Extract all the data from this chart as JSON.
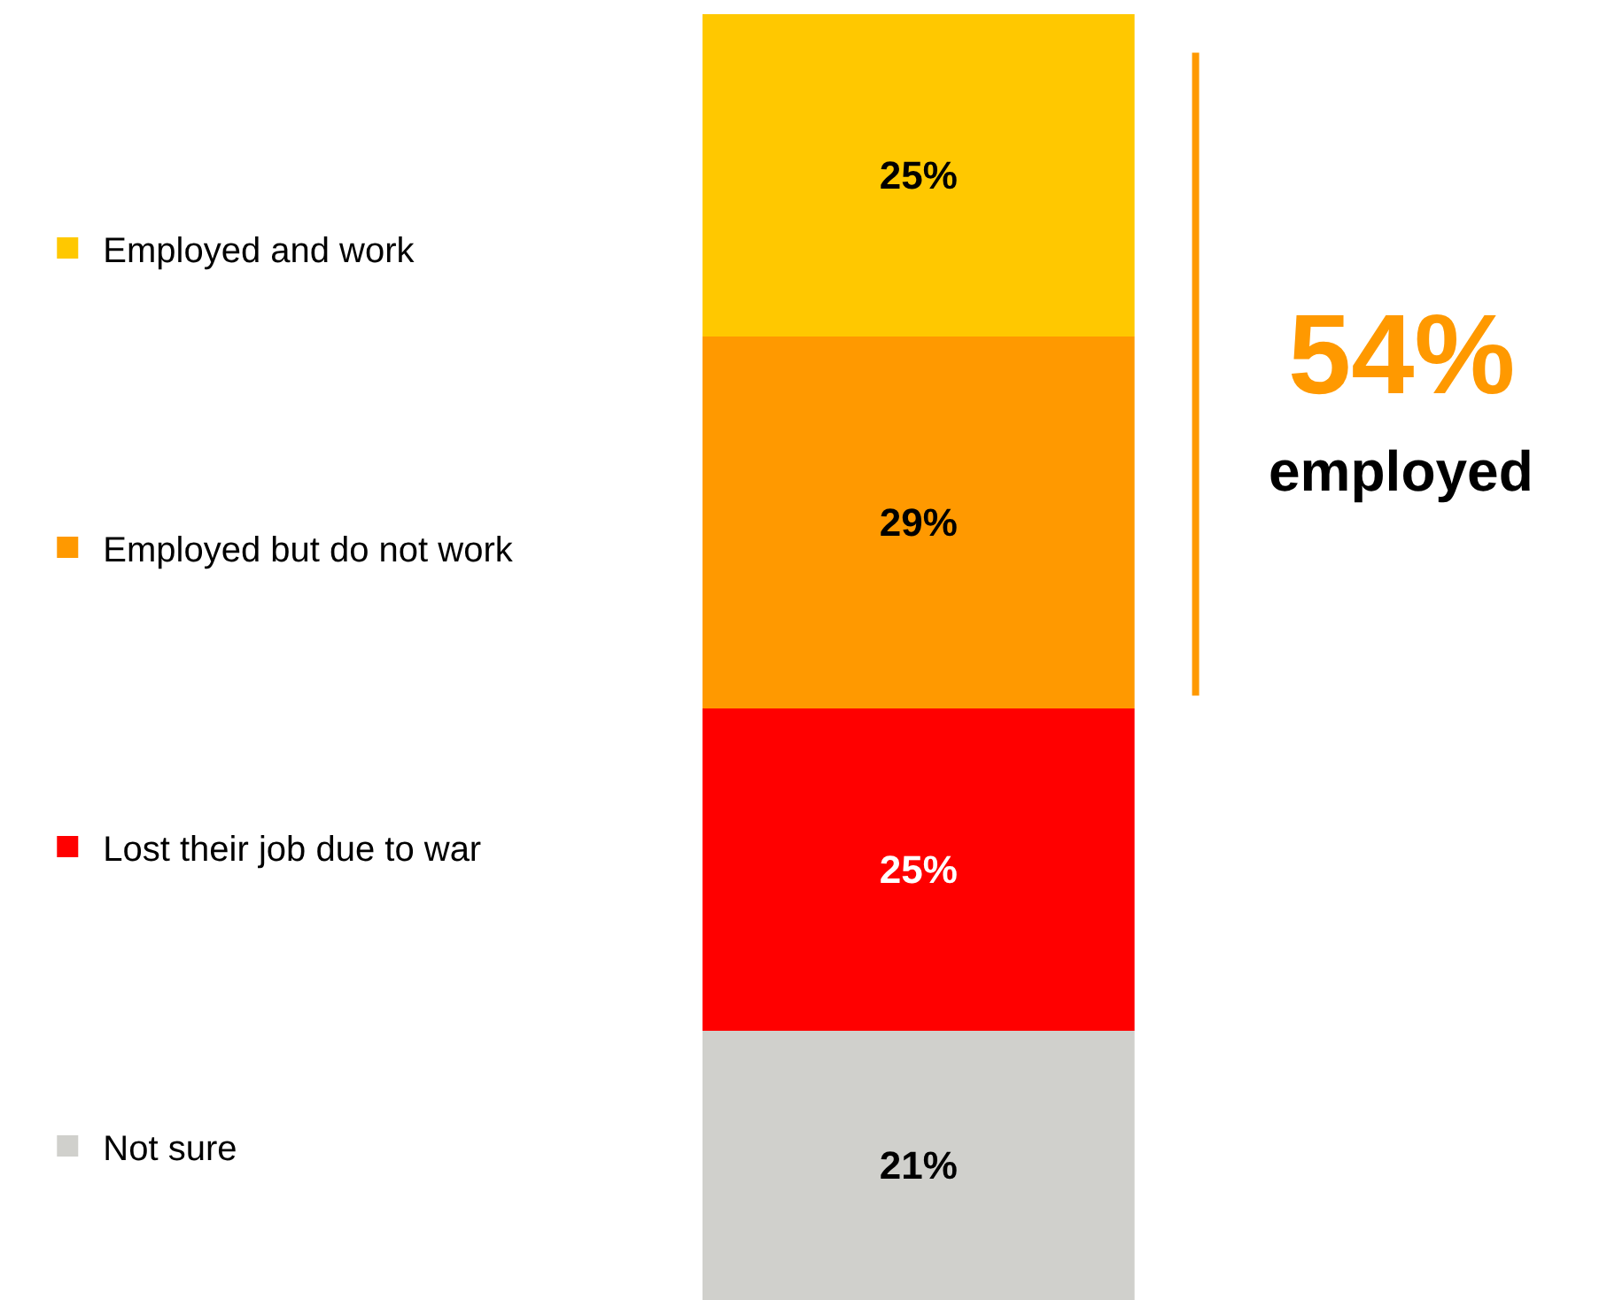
{
  "chart_data": {
    "type": "bar",
    "stacked": true,
    "categories": [
      null
    ],
    "legend": "left",
    "series": [
      {
        "name": "Not sure",
        "color": "#d0d0cc",
        "values": [
          21
        ],
        "value_labels": [
          "21%"
        ]
      },
      {
        "name": "Lost their job due to war",
        "color": "#ff0000",
        "values": [
          25
        ],
        "value_labels": [
          "25%"
        ]
      },
      {
        "name": "Employed but do not work",
        "color": "#ff9900",
        "values": [
          29
        ],
        "value_labels": [
          "29%"
        ]
      },
      {
        "name": "Employed and work",
        "color": "#ffc800",
        "values": [
          25
        ],
        "value_labels": [
          "25%"
        ]
      }
    ],
    "annotations": [
      "54%",
      "employed"
    ]
  }
}
